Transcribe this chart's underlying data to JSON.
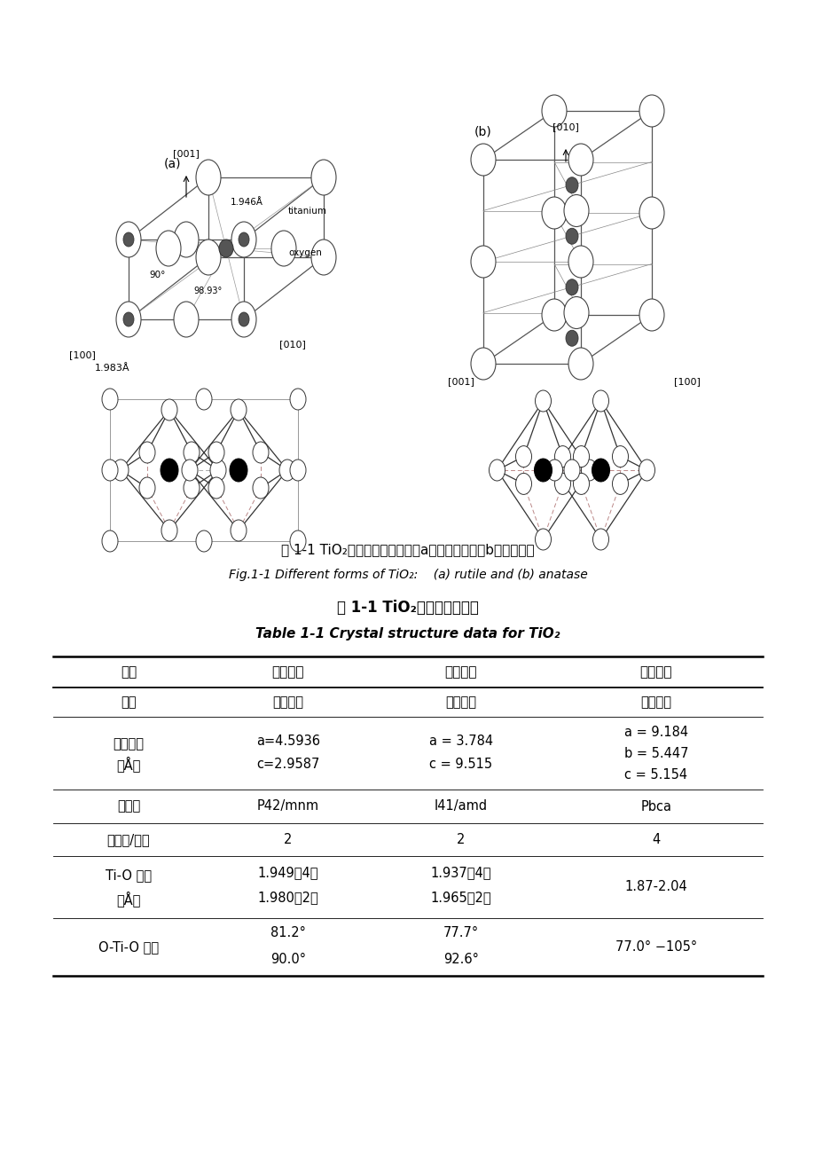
{
  "bg_color": "#ffffff",
  "page_width": 9.2,
  "page_height": 13.02,
  "caption_chinese": "图 1-1 TiO₂的晶体结构参数：（a）金红石相，（b）锐钓矿相",
  "caption_english": "Fig.1-1 Different forms of TiO₂:    (a) rutile and (b) anatase",
  "table_title_cn": "表 1-1 TiO₂的晶体结构参数",
  "table_title_en": "Table 1-1 Crystal structure data for TiO₂",
  "col_headers": [
    "性质",
    "锐钓矿相",
    "金红石相",
    "板钓矿相"
  ],
  "row0": [
    "晶系",
    "四方晶系",
    "四方晶系",
    "斜方晶系"
  ],
  "row1_label": [
    "晶格常数",
    "（Å）"
  ],
  "row1_col1": [
    "a=4.5936",
    "c=2.9587"
  ],
  "row1_col2": [
    "a = 3.784",
    "c = 9.515"
  ],
  "row1_col3": [
    "a = 9.184",
    "b = 5.447",
    "c = 5.154"
  ],
  "row2": [
    "空间群",
    "P42/mnm",
    "I41/amd",
    "Pbca"
  ],
  "row3": [
    "分子数/晶胞",
    "2",
    "2",
    "4"
  ],
  "row4_label": [
    "Ti-O 键长",
    "（Å）"
  ],
  "row4_col1": [
    "1.949（4）",
    "1.980（2）"
  ],
  "row4_col2": [
    "1.937（4）",
    "1.965（2）"
  ],
  "row4_col3": "1.87-2.04",
  "row5_label": "O-Ti-O 键角",
  "row5_col1": [
    "81.2°",
    "90.0°"
  ],
  "row5_col2": [
    "77.7°",
    "92.6°"
  ],
  "row5_col3": "77.0° −105°"
}
